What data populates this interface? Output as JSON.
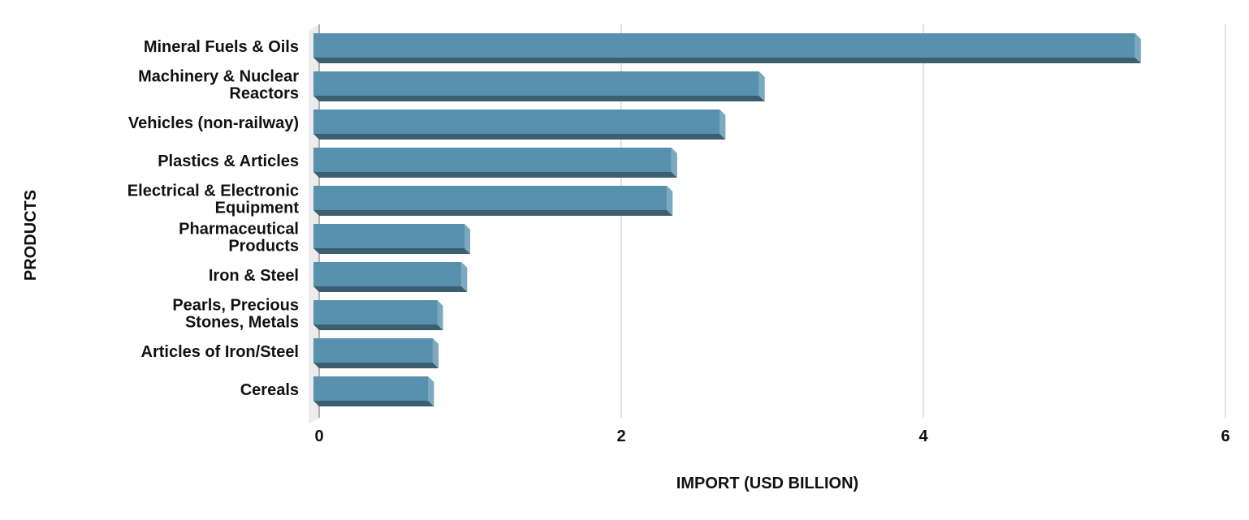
{
  "chart_data": {
    "type": "bar",
    "orientation": "horizontal",
    "style": "3d",
    "xlabel": "IMPORT (USD BILLION)",
    "ylabel": "PRODUCTS",
    "xlim": [
      0,
      6
    ],
    "xticks": [
      "0",
      "2",
      "4",
      "6"
    ],
    "grid": true,
    "categories": [
      [
        "Mineral Fuels & Oils"
      ],
      [
        "Machinery & Nuclear",
        "Reactors"
      ],
      [
        "Vehicles (non-railway)"
      ],
      [
        "Plastics & Articles"
      ],
      [
        "Electrical & Electronic",
        "Equipment"
      ],
      [
        "Pharmaceutical",
        "Products"
      ],
      [
        "Iron & Steel"
      ],
      [
        "Pearls, Precious",
        "Stones, Metals"
      ],
      [
        "Articles of Iron/Steel"
      ],
      [
        "Cereals"
      ]
    ],
    "values": [
      5.44,
      2.95,
      2.69,
      2.37,
      2.34,
      1.0,
      0.98,
      0.82,
      0.79,
      0.76
    ],
    "colors": {
      "front": "#5891ad",
      "bottom": "#3b5f70",
      "side": "#7aa9c0",
      "grid": "#d9d9d9",
      "wall": "#ececec"
    }
  }
}
